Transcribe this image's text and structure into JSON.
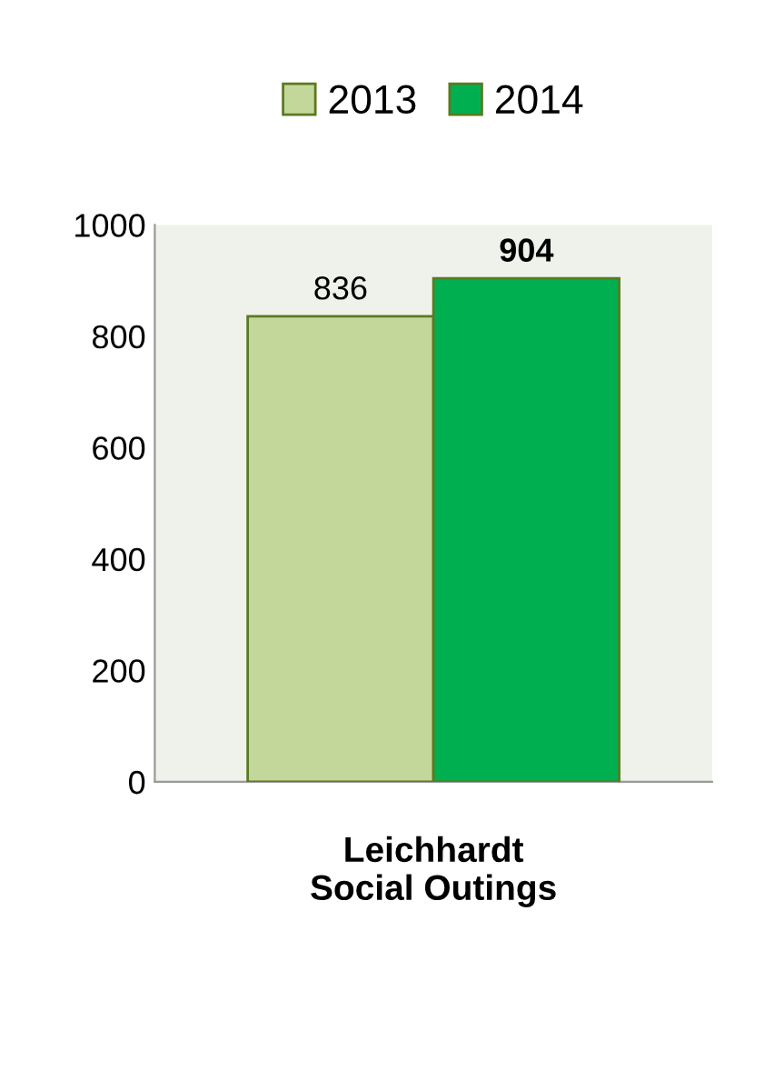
{
  "chart_data": {
    "type": "bar",
    "xlabel": "Leichhardt\nSocial Outings",
    "categories": [
      null
    ],
    "series": [
      {
        "name": "2013",
        "color": "#c4d79b",
        "values": [
          836
        ]
      },
      {
        "name": "2014",
        "color": "#00b050",
        "values": [
          904
        ]
      }
    ],
    "ylim": [
      0,
      1000
    ],
    "yticks": [
      0,
      200,
      400,
      600,
      800,
      1000
    ],
    "data_labels": true,
    "legend": "top",
    "grid": false
  }
}
